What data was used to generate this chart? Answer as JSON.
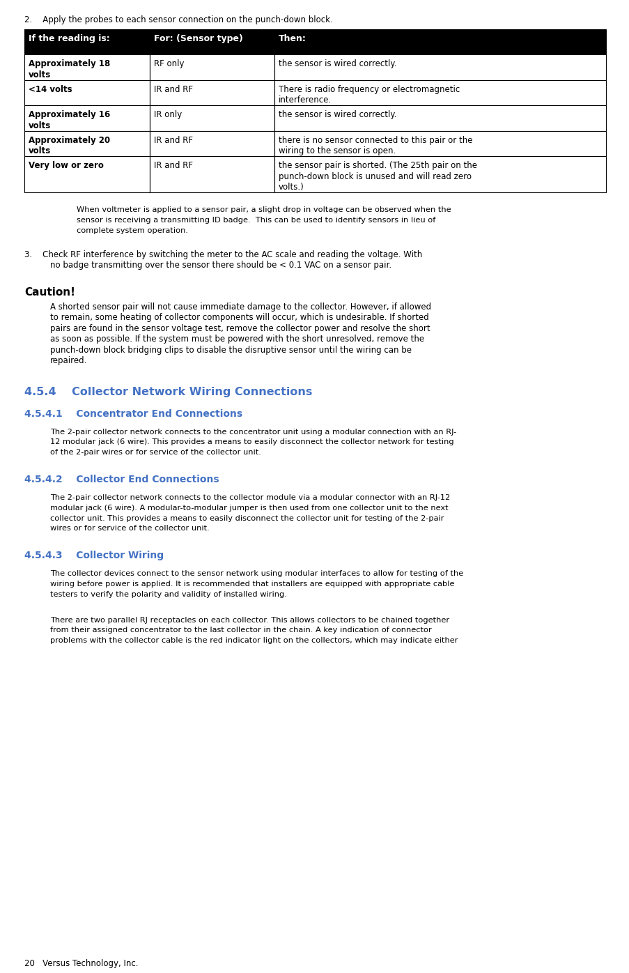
{
  "page_width": 9.04,
  "page_height": 13.96,
  "background_color": "#ffffff",
  "body_fontsize": 8.5,
  "small_fontsize": 8.2,
  "heading_fontsize": 11.5,
  "subheading_fontsize": 10.0,
  "caution_label_fontsize": 11.0,
  "step2_text": "2.    Apply the probes to each sensor connection on the punch-down block.",
  "table": {
    "col1_header": "If the reading is:",
    "col2_header": "For: (Sensor type)",
    "col3_header": "Then:",
    "rows": [
      [
        "Approximately 18\nvolts",
        "RF only",
        "the sensor is wired correctly."
      ],
      [
        "<14 volts",
        "IR and RF",
        "There is radio frequency or electromagnetic\ninterference."
      ],
      [
        "Approximately 16\nvolts",
        "IR only",
        "the sensor is wired correctly."
      ],
      [
        "Approximately 20\nvolts",
        "IR and RF",
        "there is no sensor connected to this pair or the\nwiring to the sensor is open."
      ],
      [
        "Very low or zero",
        "IR and RF",
        "the sensor pair is shorted. (The 25th pair on the\npunch-down block is unused and will read zero\nvolts.)"
      ]
    ]
  },
  "italic_note": "When voltmeter is applied to a sensor pair, a slight drop in voltage can be observed when the\nsensor is receiving a transmitting ID badge.  This can be used to identify sensors in lieu of\ncomplete system operation.",
  "step3_line1": "3.    Check RF interference by switching the meter to the AC scale and reading the voltage. With",
  "step3_line2": "no badge transmitting over the sensor there should be < 0.1 VAC on a sensor pair.",
  "caution_label": "Caution!",
  "caution_lines": [
    "A shorted sensor pair will not cause immediate damage to the collector. However, if allowed",
    "to remain, some heating of collector components will occur, which is undesirable. If shorted",
    "pairs are found in the sensor voltage test, remove the collector power and resolve the short",
    "as soon as possible. If the system must be powered with the short unresolved, remove the",
    "punch-down block bridging clips to disable the disruptive sensor until the wiring can be",
    "repaired."
  ],
  "section_454": "4.5.4    Collector Network Wiring Connections",
  "section_4541": "4.5.4.1    Concentrator End Connections",
  "para_4541_lines": [
    "The 2-pair collector network connects to the concentrator unit using a modular connection with an RJ-",
    "12 modular jack (6 wire). This provides a means to easily disconnect the collector network for testing",
    "of the 2-pair wires or for service of the collector unit."
  ],
  "section_4542": "4.5.4.2    Collector End Connections",
  "para_4542_lines": [
    "The 2-pair collector network connects to the collector module via a modular connector with an RJ-12",
    "modular jack (6 wire). A modular-to-modular jumper is then used from one collector unit to the next",
    "collector unit. This provides a means to easily disconnect the collector unit for testing of the 2-pair",
    "wires or for service of the collector unit."
  ],
  "section_4543": "4.5.4.3    Collector Wiring",
  "para_4543a_lines": [
    "The collector devices connect to the sensor network using modular interfaces to allow for testing of the",
    "wiring before power is applied. It is recommended that installers are equipped with appropriate cable",
    "testers to verify the polarity and validity of installed wiring."
  ],
  "para_4543b_lines": [
    "There are two parallel RJ receptacles on each collector. This allows collectors to be chained together",
    "from their assigned concentrator to the last collector in the chain. A key indication of connector",
    "problems with the collector cable is the red indicator light on the collectors, which may indicate either"
  ],
  "footer_text": "20   Versus Technology, Inc.",
  "section_color": "#4472c4",
  "table_border_color": "#000000"
}
